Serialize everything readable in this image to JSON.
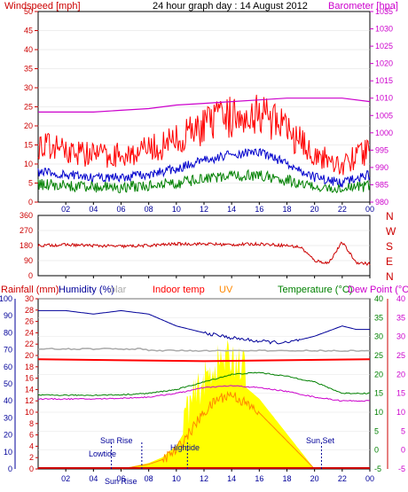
{
  "header": {
    "title": "24 hour graph day : 14 August 2012",
    "windspeed_label": "Windspeed [mph]",
    "barometer_label": "Barometer [hpa]"
  },
  "colors": {
    "wind_gust": "#ff0000",
    "wind_avg": "#0000cc",
    "wind_low": "#008000",
    "barometer": "#cc00cc",
    "direction": "#cc0000",
    "humidity": "#000099",
    "solar": "#aaaaaa",
    "indoor": "#ff0000",
    "uv": "#ff8800",
    "temperature": "#008000",
    "dewpoint": "#cc00cc",
    "solar_fill": "#ffff00"
  },
  "x_ticks": [
    "02",
    "04",
    "06",
    "08",
    "10",
    "12",
    "14",
    "16",
    "18",
    "20",
    "22",
    "00"
  ],
  "panel_wind": {
    "y_left_ticks": [
      "0",
      "5",
      "10",
      "15",
      "20",
      "25",
      "30",
      "35",
      "40",
      "45",
      "50"
    ],
    "y_right_ticks": [
      "980",
      "985",
      "990",
      "995",
      "1000",
      "1005",
      "1010",
      "1015",
      "1020",
      "1025",
      "1030",
      "1035"
    ]
  },
  "panel_direction": {
    "y_left_ticks": [
      "0",
      "90",
      "180",
      "270",
      "360"
    ],
    "compass": [
      "N",
      "W",
      "S",
      "E",
      "N"
    ]
  },
  "panel_bottom": {
    "labels": {
      "rainfall": "Rainfall (mm)",
      "humidity": "Humidity (%)",
      "solar": "olar",
      "indoor": "Indoor temp",
      "uv": "UV",
      "temperature": "Temperature (°C)",
      "dewpoint": "Dew Point (°C)"
    },
    "y_humidity_ticks": [
      "0",
      "10",
      "20",
      "30",
      "40",
      "50",
      "60",
      "70",
      "80",
      "90",
      "100"
    ],
    "y_rain_ticks": [
      "0",
      "2",
      "4",
      "6",
      "8",
      "10",
      "12",
      "14",
      "16",
      "18",
      "20",
      "22",
      "24",
      "26",
      "28",
      "30"
    ],
    "y_temp_ticks": [
      "-5",
      "0",
      "5",
      "10",
      "15",
      "20",
      "25",
      "30",
      "35",
      "40"
    ],
    "annotations": {
      "sunrise": "Sun Rise",
      "sunset": "Sun Set",
      "lowtide": "Lowtide",
      "hightide": "Hightide",
      "sunrise_axis": "Sun Rise"
    }
  },
  "chart_data": [
    {
      "type": "line",
      "title": "24 hour graph day : 14 August 2012",
      "x_range_hours": [
        0,
        24
      ],
      "series": [
        {
          "name": "Windspeed [mph]",
          "x": [
            0,
            2,
            4,
            6,
            8,
            10,
            12,
            14,
            16,
            18,
            20,
            22,
            24
          ],
          "values": [
            9,
            8,
            7,
            7,
            8,
            10,
            13,
            15,
            16,
            12,
            7,
            5,
            8
          ]
        },
        {
          "name": "Barometer [hpa]",
          "x": [
            0,
            2,
            4,
            6,
            8,
            10,
            12,
            14,
            16,
            18,
            20,
            22,
            24
          ],
          "values": [
            1006,
            1006,
            1006,
            1006.5,
            1007,
            1008,
            1008.5,
            1009,
            1009.5,
            1010,
            1010,
            1010,
            1009
          ]
        }
      ],
      "ylim": [
        0,
        50
      ],
      "y2lim": [
        980,
        1035
      ]
    },
    {
      "type": "line",
      "x": [
        0,
        2,
        4,
        6,
        8,
        10,
        12,
        14,
        16,
        18,
        19,
        20,
        21,
        22,
        23,
        24
      ],
      "values": [
        180,
        185,
        180,
        175,
        180,
        190,
        190,
        185,
        190,
        180,
        170,
        90,
        75,
        200,
        80,
        70
      ],
      "ylim": [
        0,
        360
      ]
    },
    {
      "type": "line",
      "series": [
        {
          "name": "Humidity (%)",
          "x": [
            0,
            2,
            4,
            6,
            8,
            10,
            12,
            14,
            16,
            18,
            20,
            22,
            23,
            24
          ],
          "values": [
            93,
            93,
            91,
            93,
            91,
            84,
            80,
            77,
            75,
            74,
            78,
            84,
            82,
            82
          ]
        },
        {
          "name": "Indoor temp",
          "x": [
            0,
            12,
            24
          ],
          "values": [
            24,
            23.5,
            24
          ]
        },
        {
          "name": "Temperature (°C)",
          "x": [
            0,
            2,
            4,
            6,
            8,
            10,
            12,
            14,
            16,
            18,
            20,
            22,
            24
          ],
          "values": [
            14.5,
            14.5,
            14.5,
            14.6,
            15,
            16,
            18,
            20,
            20.5,
            19.5,
            18,
            15,
            15
          ]
        },
        {
          "name": "Dew Point (°C)",
          "x": [
            0,
            2,
            4,
            6,
            8,
            10,
            12,
            14,
            16,
            18,
            20,
            22,
            24
          ],
          "values": [
            13.5,
            13.5,
            13.5,
            13.7,
            14,
            15,
            16.5,
            17,
            16.5,
            15.5,
            14,
            13,
            13
          ]
        },
        {
          "name": "UV",
          "x": [
            6,
            8,
            9,
            10,
            11,
            12,
            13,
            14,
            16,
            18,
            20
          ],
          "values": [
            0,
            0.5,
            1,
            2,
            4,
            6,
            7.5,
            8,
            6,
            3,
            0
          ]
        }
      ],
      "ylim": [
        0,
        100
      ],
      "y2lim": [
        -5,
        40
      ]
    }
  ]
}
